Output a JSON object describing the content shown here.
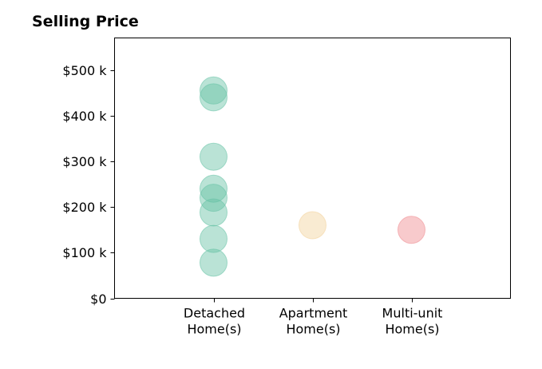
{
  "chart_data": {
    "type": "scatter",
    "title": "Selling Price",
    "xlabel": "",
    "ylabel": "",
    "categories": [
      "Detached\nHome(s)",
      "Apartment\nHome(s)",
      "Multi-unit\nHome(s)"
    ],
    "xlim": [
      -1,
      3
    ],
    "ylim": [
      0,
      570000
    ],
    "yticks": [
      0,
      100000,
      200000,
      300000,
      400000,
      500000
    ],
    "ytick_labels": [
      "$0",
      "$100 k",
      "$200 k",
      "$300 k",
      "$400 k",
      "$500 k"
    ],
    "grid": false,
    "series": [
      {
        "category": "Detached\nHome(s)",
        "color": "#66c2a5",
        "values": [
          455000,
          440000,
          310000,
          240000,
          220000,
          188000,
          130000,
          78000
        ]
      },
      {
        "category": "Apartment\nHome(s)",
        "color": "#f2d29b",
        "values": [
          160000
        ]
      },
      {
        "category": "Multi-unit\nHome(s)",
        "color": "#ef8a8f",
        "values": [
          150000
        ]
      }
    ]
  }
}
